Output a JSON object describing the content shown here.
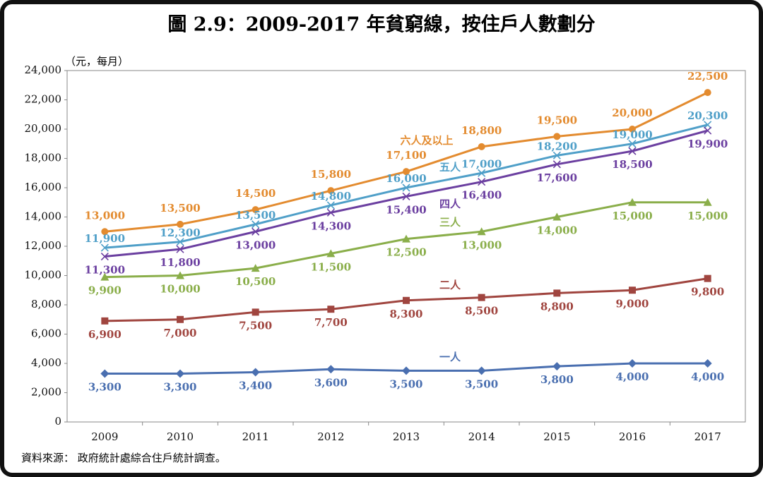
{
  "chart_data": {
    "type": "line",
    "title": "圖 2.9：2009-2017 年貧窮線，按住戶人數劃分",
    "y_label": "（元，每月）",
    "source": "資料來源： 政府統計處綜合住戶統計調查。",
    "categories": [
      "2009",
      "2010",
      "2011",
      "2012",
      "2013",
      "2014",
      "2015",
      "2016",
      "2017"
    ],
    "ylim": [
      0,
      24000
    ],
    "yticks": [
      0,
      {
        "value": 2000,
        "label": "2,000"
      },
      {
        "value": 4000,
        "label": "4,000"
      },
      {
        "value": 6000,
        "label": "6,000"
      },
      {
        "value": 8000,
        "label": "8,000"
      },
      {
        "value": 10000,
        "label": "10,000"
      },
      {
        "value": 12000,
        "label": "12,000"
      },
      {
        "value": 14000,
        "label": "14,000"
      },
      {
        "value": 16000,
        "label": "16,000"
      },
      {
        "value": 18000,
        "label": "18,000"
      },
      {
        "value": 20000,
        "label": "20,000"
      },
      {
        "value": 22000,
        "label": "22,000"
      },
      {
        "value": 24000,
        "label": "24,000"
      }
    ],
    "grid": false,
    "series": [
      {
        "name": "六人及以上",
        "color": "#e38b2f",
        "marker": "circle",
        "values": [
          13000,
          13500,
          14500,
          15800,
          17100,
          18800,
          19500,
          20000,
          22500
        ],
        "value_labels": [
          "13,000",
          "13,500",
          "14,500",
          "15,800",
          "17,100",
          "18,800",
          "19,500",
          "20,000",
          "22,500"
        ]
      },
      {
        "name": "五人",
        "color": "#4f9fc8",
        "marker": "x",
        "values": [
          11900,
          12300,
          13500,
          14800,
          16000,
          17000,
          18200,
          19000,
          20300
        ],
        "value_labels": [
          "11,900",
          "12,300",
          "13,500",
          "14,800",
          "16,000",
          "17,000",
          "18,200",
          "19,000",
          "20,300"
        ]
      },
      {
        "name": "四人",
        "color": "#6b3fa0",
        "marker": "x",
        "values": [
          11300,
          11800,
          13000,
          14300,
          15400,
          16400,
          17600,
          18500,
          19900
        ],
        "value_labels": [
          "11,300",
          "11,800",
          "13,000",
          "14,300",
          "15,400",
          "16,400",
          "17,600",
          "18,500",
          "19,900"
        ]
      },
      {
        "name": "三人",
        "color": "#8aae4a",
        "marker": "triangle",
        "values": [
          9900,
          10000,
          10500,
          11500,
          12500,
          13000,
          14000,
          15000,
          15000
        ],
        "value_labels": [
          "9,900",
          "10,000",
          "10,500",
          "11,500",
          "12,500",
          "13,000",
          "14,000",
          "15,000",
          "15,000"
        ]
      },
      {
        "name": "二人",
        "color": "#a0453f",
        "marker": "square",
        "values": [
          6900,
          7000,
          7500,
          7700,
          8300,
          8500,
          8800,
          9000,
          9800
        ],
        "value_labels": [
          "6,900",
          "7,000",
          "7,500",
          "7,700",
          "8,300",
          "8,500",
          "8,800",
          "9,000",
          "9,800"
        ]
      },
      {
        "name": "一人",
        "color": "#4a6fb0",
        "marker": "diamond",
        "values": [
          3300,
          3300,
          3400,
          3600,
          3500,
          3500,
          3800,
          4000,
          4000
        ],
        "value_labels": [
          "3,300",
          "3,300",
          "3,400",
          "3,600",
          "3,500",
          "3,500",
          "3,800",
          "4,000",
          "4,000"
        ]
      }
    ]
  }
}
